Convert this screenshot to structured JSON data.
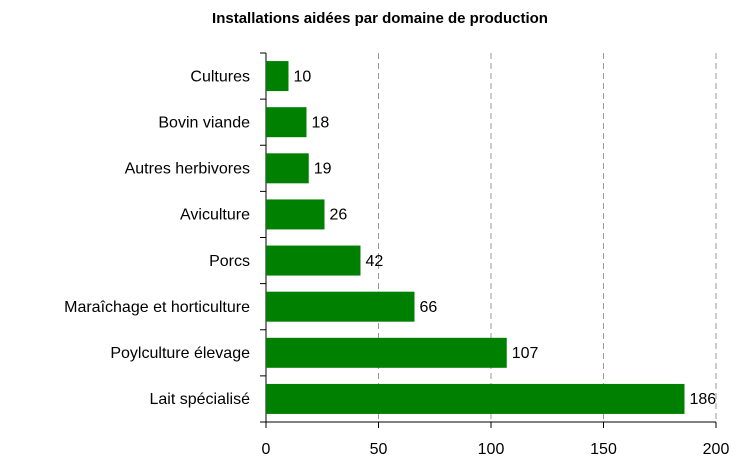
{
  "chart_data": {
    "type": "barh",
    "title": "Installations aidées par domaine de production",
    "categories": [
      "Cultures",
      "Bovin viande",
      "Autres herbivores",
      "Aviculture",
      "Porcs",
      "Maraîchage et horticulture",
      "Poylculture élevage",
      "Lait spécialisé"
    ],
    "values": [
      10,
      18,
      19,
      26,
      42,
      66,
      107,
      186
    ],
    "color": "#008000",
    "xlim": [
      0,
      200
    ],
    "xticks": [
      0,
      50,
      100,
      150,
      200
    ],
    "grid": true
  }
}
